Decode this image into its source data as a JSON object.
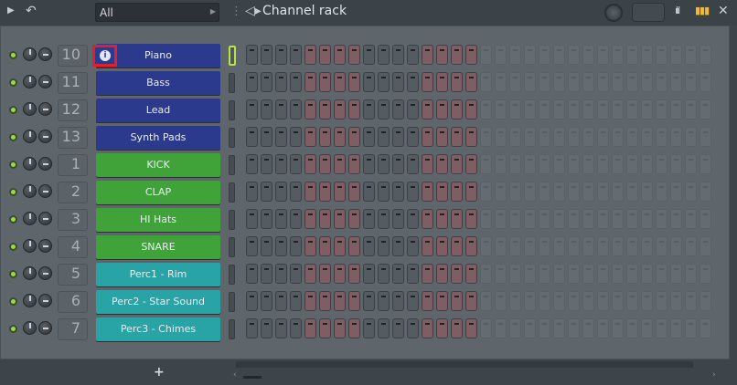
{
  "toolbar": {
    "filter_value": "All",
    "title": "Channel rack",
    "add_label": "+"
  },
  "colors": {
    "blue": "#2b3a8c",
    "green": "#3fa33a",
    "teal": "#29a4a6",
    "highlight": "#e0212b"
  },
  "channels": [
    {
      "num": "10",
      "name": "Piano",
      "color": "blue",
      "selected": true
    },
    {
      "num": "11",
      "name": "Bass",
      "color": "blue"
    },
    {
      "num": "12",
      "name": "Lead",
      "color": "blue"
    },
    {
      "num": "13",
      "name": "Synth Pads",
      "color": "blue"
    },
    {
      "num": "1",
      "name": "KICK",
      "color": "green"
    },
    {
      "num": "2",
      "name": "CLAP",
      "color": "green"
    },
    {
      "num": "3",
      "name": "HI Hats",
      "color": "green"
    },
    {
      "num": "4",
      "name": "SNARE",
      "color": "green"
    },
    {
      "num": "5",
      "name": "Perc1 - Rim",
      "color": "teal"
    },
    {
      "num": "6",
      "name": "Perc2 - Star Sound",
      "color": "teal"
    },
    {
      "num": "7",
      "name": "Perc3 - Chimes",
      "color": "teal"
    }
  ]
}
